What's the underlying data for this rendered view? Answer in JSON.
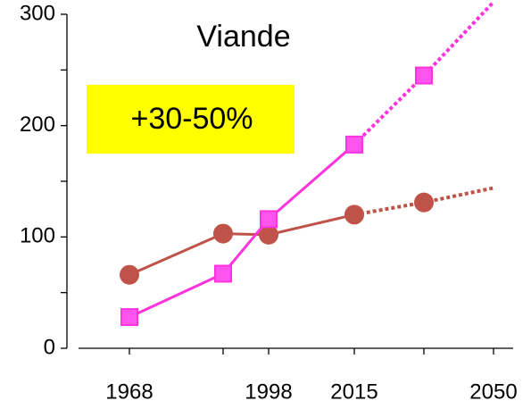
{
  "chart_data": {
    "type": "line",
    "title": "Viande",
    "annotation": "+30-50%",
    "annotation_color": "#ffff00",
    "categories": [
      "1968",
      null,
      "1998",
      "2015",
      null,
      "2050"
    ],
    "series": [
      {
        "color": "#bf5349",
        "marker": "circle",
        "values": [
          66,
          103,
          102,
          120,
          131,
          144
        ]
      },
      {
        "color": "#ff33dd",
        "marker": "square",
        "values": [
          28,
          67,
          116,
          183,
          245,
          311
        ]
      }
    ],
    "dashed_from_index": 3,
    "ylim": [
      0,
      300
    ],
    "yticks": [
      0,
      100,
      200,
      300
    ],
    "yticks_minor": [
      50,
      150,
      250
    ]
  }
}
